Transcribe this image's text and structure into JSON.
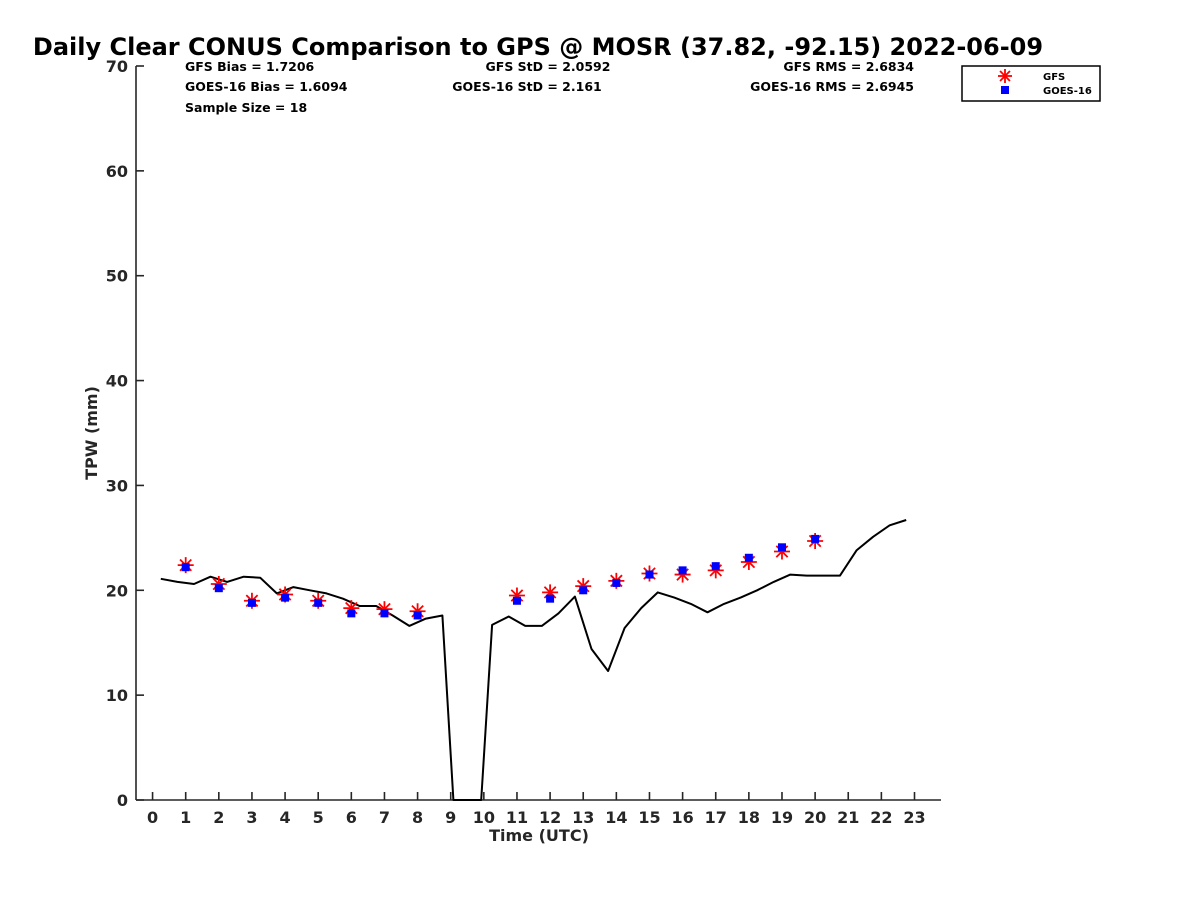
{
  "chart_data": {
    "type": "line",
    "title": "Daily Clear CONUS Comparison to GPS @ MOSR (37.82, -92.15) 2022-06-09",
    "xlabel": "Time (UTC)",
    "ylabel": "TPW (mm)",
    "xlim": [
      -0.5,
      23.8
    ],
    "ylim": [
      0,
      70
    ],
    "xticks": [
      0,
      1,
      2,
      3,
      4,
      5,
      6,
      7,
      8,
      9,
      10,
      11,
      12,
      13,
      14,
      15,
      16,
      17,
      18,
      19,
      20,
      21,
      22,
      23
    ],
    "yticks": [
      0,
      10,
      20,
      30,
      40,
      50,
      60,
      70
    ],
    "grid": false,
    "legend_position": "top-right, outside plot",
    "stats": {
      "gfs_bias": "GFS Bias = 1.7206",
      "goes_bias": "GOES-16 Bias = 1.6094",
      "sample_size": "Sample Size = 18",
      "gfs_std": "GFS StD = 2.0592",
      "goes_std": "GOES-16 StD = 2.161",
      "gfs_rms": "GFS RMS = 2.6834",
      "goes_rms": "GOES-16 RMS = 2.6945"
    },
    "series": [
      {
        "name": "GPS",
        "kind": "line",
        "color": "#000000",
        "x": [
          0.25,
          0.75,
          1.25,
          1.75,
          2.25,
          2.75,
          3.25,
          3.75,
          4.25,
          4.75,
          5.25,
          5.75,
          6.25,
          6.75,
          7.25,
          7.75,
          8.25,
          8.75,
          9.08,
          9.25,
          9.75,
          9.92,
          10.25,
          10.75,
          11.25,
          11.75,
          12.25,
          12.75,
          13.25,
          13.75,
          14.25,
          14.75,
          15.25,
          15.75,
          16.25,
          16.75,
          17.25,
          17.75,
          18.25,
          18.75,
          19.25,
          19.75,
          20.25,
          20.75,
          21.25,
          21.75,
          22.25,
          22.75
        ],
        "y": [
          21.1,
          20.8,
          20.6,
          21.3,
          20.8,
          21.3,
          21.2,
          19.7,
          20.3,
          20.0,
          19.7,
          19.2,
          18.5,
          18.5,
          17.6,
          16.6,
          17.3,
          17.6,
          0,
          0,
          0,
          0,
          16.7,
          17.5,
          16.6,
          16.6,
          17.8,
          19.4,
          14.4,
          12.3,
          16.4,
          18.3,
          19.8,
          19.3,
          18.7,
          17.9,
          18.7,
          19.3,
          20.0,
          20.8,
          21.5,
          21.4,
          21.4,
          21.4,
          23.8,
          25.1,
          26.2,
          26.7
        ]
      },
      {
        "name": "GFS",
        "kind": "marker",
        "marker": "asterisk",
        "color": "#ff0000",
        "x": [
          1,
          2,
          3,
          4,
          5,
          6,
          7,
          8,
          11,
          12,
          13,
          14,
          15,
          16,
          17,
          18,
          19,
          20
        ],
        "y": [
          22.4,
          20.6,
          19.0,
          19.6,
          19.0,
          18.3,
          18.2,
          18.0,
          19.5,
          19.8,
          20.4,
          20.9,
          21.6,
          21.5,
          21.9,
          22.7,
          23.7,
          24.7
        ]
      },
      {
        "name": "GOES-16",
        "kind": "marker",
        "marker": "square",
        "color": "#0000ff",
        "x": [
          1,
          2,
          3,
          4,
          5,
          6,
          7,
          8,
          11,
          12,
          13,
          14,
          15,
          16,
          17,
          18,
          19,
          20
        ],
        "y": [
          22.2,
          20.2,
          18.8,
          19.3,
          18.8,
          17.8,
          17.8,
          17.6,
          19.0,
          19.2,
          20.0,
          20.7,
          21.5,
          21.9,
          22.3,
          23.1,
          24.1,
          24.9
        ]
      }
    ],
    "legend": [
      {
        "label": "GFS",
        "marker": "asterisk",
        "color": "#ff0000"
      },
      {
        "label": "GOES-16",
        "marker": "square",
        "color": "#0000ff"
      }
    ]
  }
}
